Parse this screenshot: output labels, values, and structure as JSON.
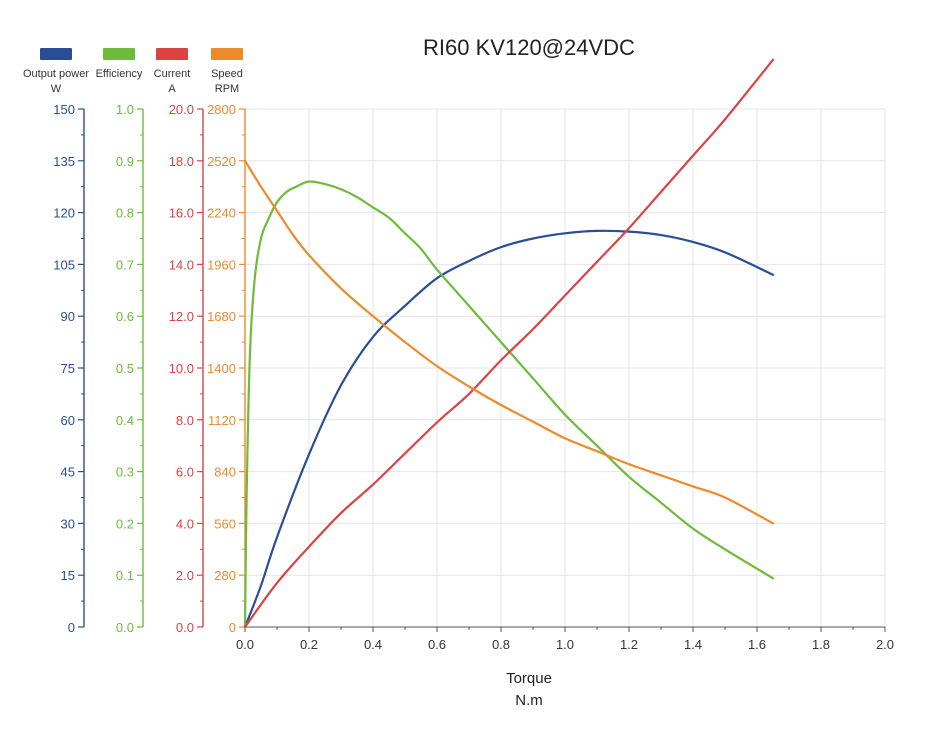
{
  "chart_data": {
    "type": "line",
    "title": "RI60 KV120@24VDC",
    "xlabel": "Torque",
    "xunit": "N.m",
    "xlim": [
      0.0,
      2.0
    ],
    "x_ticks": [
      "0.0",
      "0.2",
      "0.4",
      "0.6",
      "0.8",
      "1.0",
      "1.2",
      "1.4",
      "1.6",
      "1.8",
      "2.0"
    ],
    "grid": true,
    "legend_position": "top-left",
    "axes": [
      {
        "id": "power",
        "label": "Output power",
        "unit": "W",
        "color": "#2a4e96",
        "ylim": [
          0,
          150
        ],
        "ticks": [
          "0",
          "15",
          "30",
          "45",
          "60",
          "75",
          "90",
          "105",
          "120",
          "135",
          "150"
        ]
      },
      {
        "id": "efficiency",
        "label": "Efficiency",
        "unit": "",
        "color": "#6dbb3a",
        "ylim": [
          0,
          1
        ],
        "ticks": [
          "0.0",
          "0.1",
          "0.2",
          "0.3",
          "0.4",
          "0.5",
          "0.6",
          "0.7",
          "0.8",
          "0.9",
          "1.0"
        ]
      },
      {
        "id": "current",
        "label": "Current",
        "unit": "A",
        "color": "#d94343",
        "ylim": [
          0,
          20
        ],
        "ticks": [
          "0.0",
          "2.0",
          "4.0",
          "6.0",
          "8.0",
          "10.0",
          "12.0",
          "14.0",
          "16.0",
          "18.0",
          "20.0"
        ]
      },
      {
        "id": "speed",
        "label": "Speed",
        "unit": "RPM",
        "color": "#ec8a2c",
        "ylim": [
          0,
          2800
        ],
        "ticks": [
          "0",
          "280",
          "560",
          "840",
          "1120",
          "1400",
          "1680",
          "1960",
          "2240",
          "2520",
          "2800"
        ]
      }
    ],
    "series": [
      {
        "name": "Output power",
        "axis": "power",
        "color": "#2a4e96",
        "x": [
          0,
          0.05,
          0.1,
          0.2,
          0.3,
          0.4,
          0.5,
          0.6,
          0.7,
          0.8,
          0.9,
          1.0,
          1.1,
          1.2,
          1.3,
          1.4,
          1.5,
          1.65
        ],
        "y": [
          0,
          12,
          26,
          50,
          70,
          84,
          93,
          101,
          106,
          110,
          112.5,
          114,
          114.7,
          114.5,
          113.5,
          111.5,
          108.5,
          102
        ]
      },
      {
        "name": "Efficiency",
        "axis": "efficiency",
        "color": "#6dbb3a",
        "x": [
          0,
          0.005,
          0.015,
          0.03,
          0.05,
          0.075,
          0.1,
          0.13,
          0.16,
          0.2,
          0.25,
          0.3,
          0.35,
          0.4,
          0.45,
          0.5,
          0.55,
          0.6,
          0.7,
          0.8,
          0.9,
          1.0,
          1.1,
          1.2,
          1.3,
          1.4,
          1.5,
          1.65
        ],
        "y": [
          0,
          0.25,
          0.52,
          0.67,
          0.75,
          0.79,
          0.82,
          0.84,
          0.85,
          0.86,
          0.855,
          0.845,
          0.83,
          0.81,
          0.79,
          0.76,
          0.73,
          0.69,
          0.62,
          0.55,
          0.48,
          0.41,
          0.35,
          0.29,
          0.24,
          0.19,
          0.15,
          0.094
        ]
      },
      {
        "name": "Current",
        "axis": "current",
        "color": "#d94343",
        "x": [
          0,
          0.1,
          0.2,
          0.3,
          0.4,
          0.5,
          0.6,
          0.7,
          0.8,
          0.9,
          1.0,
          1.1,
          1.2,
          1.3,
          1.4,
          1.5,
          1.65
        ],
        "y": [
          0,
          1.7,
          3.1,
          4.4,
          5.5,
          6.7,
          7.9,
          9.0,
          10.3,
          11.5,
          12.8,
          14.1,
          15.4,
          16.8,
          18.2,
          19.6,
          21.9
        ]
      },
      {
        "name": "Speed",
        "axis": "speed",
        "color": "#ec8a2c",
        "x": [
          0,
          0.05,
          0.1,
          0.15,
          0.2,
          0.3,
          0.4,
          0.5,
          0.6,
          0.7,
          0.8,
          0.9,
          1.0,
          1.1,
          1.2,
          1.3,
          1.4,
          1.5,
          1.65
        ],
        "y": [
          2520,
          2380,
          2250,
          2120,
          2010,
          1830,
          1680,
          1540,
          1410,
          1300,
          1200,
          1110,
          1020,
          950,
          880,
          820,
          760,
          700,
          560
        ]
      }
    ]
  }
}
